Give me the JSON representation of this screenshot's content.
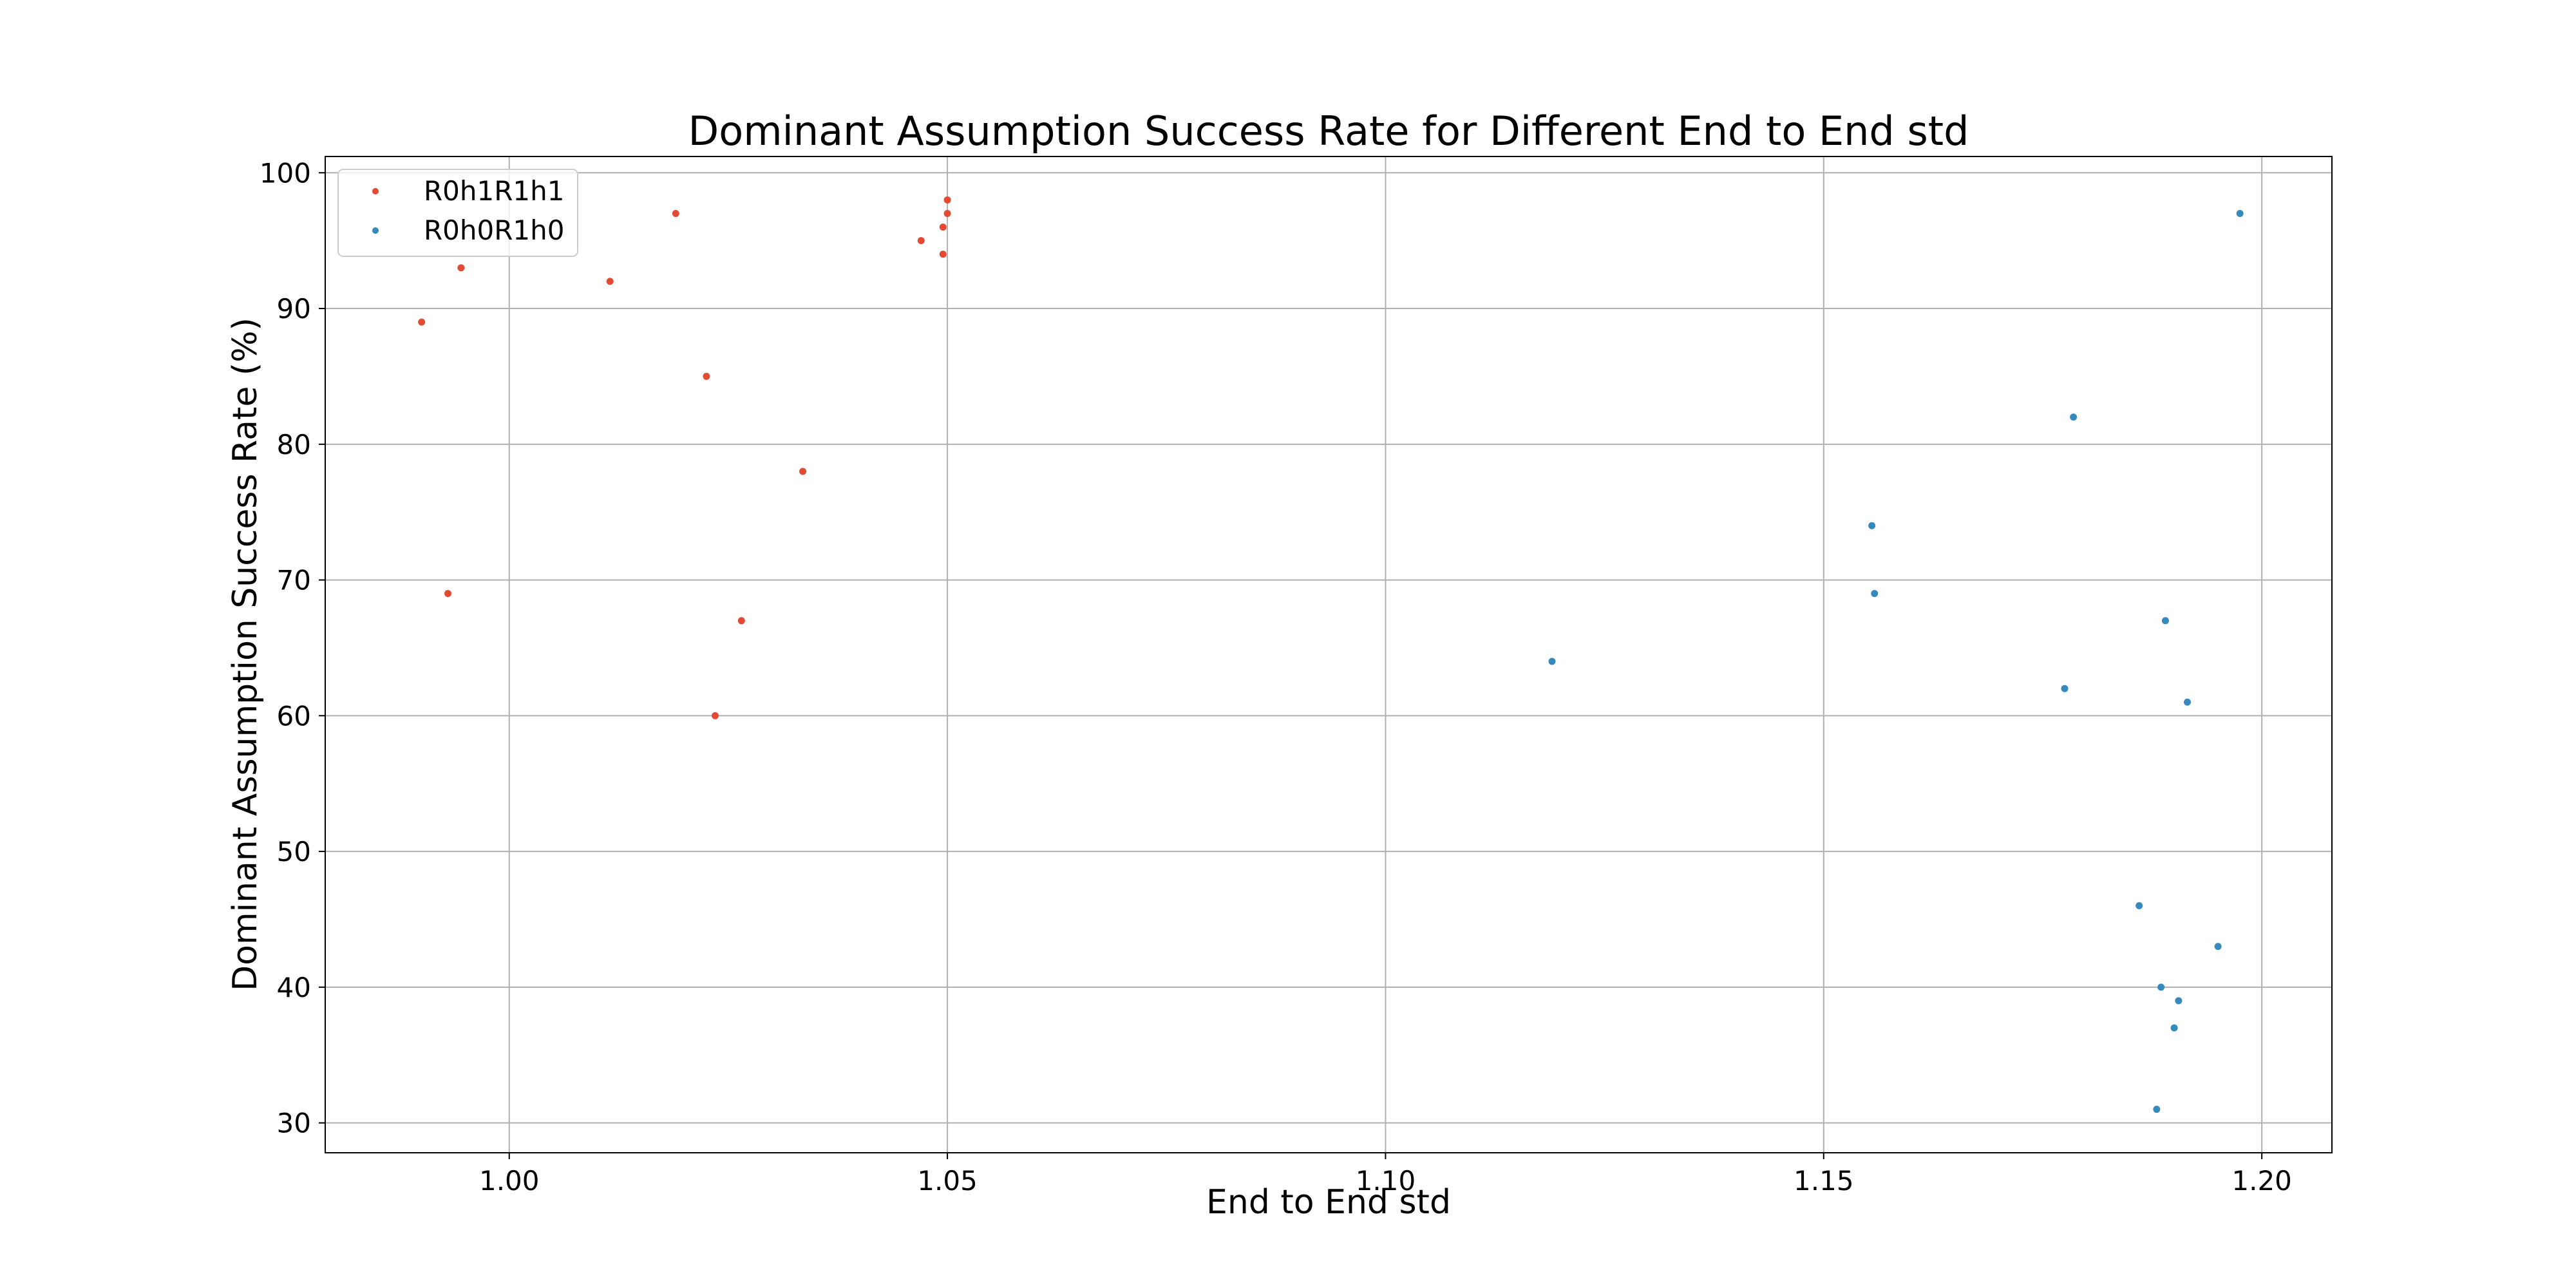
{
  "chart_data": {
    "type": "scatter",
    "title": "Dominant Assumption Success Rate for Different End to End std",
    "xlabel": "End to End std",
    "ylabel": "Dominant Assumption Success Rate (%)",
    "xlim": [
      0.979,
      1.208
    ],
    "ylim": [
      27.8,
      101.2
    ],
    "xticks": [
      1.0,
      1.05,
      1.1,
      1.15,
      1.2
    ],
    "xtick_labels": [
      "1.00",
      "1.05",
      "1.10",
      "1.15",
      "1.20"
    ],
    "yticks": [
      30,
      40,
      50,
      60,
      70,
      80,
      90,
      100
    ],
    "ytick_labels": [
      "30",
      "40",
      "50",
      "60",
      "70",
      "80",
      "90",
      "100"
    ],
    "grid": true,
    "legend_position": "top-left",
    "series": [
      {
        "name": "R0h1R1h1",
        "color": "#e24a33",
        "points": [
          [
            0.99,
            89
          ],
          [
            0.9945,
            93
          ],
          [
            0.993,
            69
          ],
          [
            1.0115,
            92
          ],
          [
            1.019,
            97
          ],
          [
            1.0225,
            85
          ],
          [
            1.0235,
            60
          ],
          [
            1.0265,
            67
          ],
          [
            1.0335,
            78
          ],
          [
            1.047,
            95
          ],
          [
            1.0495,
            96
          ],
          [
            1.0495,
            94
          ],
          [
            1.05,
            97
          ],
          [
            1.05,
            98
          ]
        ]
      },
      {
        "name": "R0h0R1h0",
        "color": "#348abd",
        "points": [
          [
            1.119,
            64
          ],
          [
            1.1555,
            74
          ],
          [
            1.1558,
            69
          ],
          [
            1.1775,
            62
          ],
          [
            1.1785,
            82
          ],
          [
            1.186,
            46
          ],
          [
            1.188,
            31
          ],
          [
            1.1885,
            40
          ],
          [
            1.189,
            67
          ],
          [
            1.19,
            37
          ],
          [
            1.1905,
            39
          ],
          [
            1.1915,
            61
          ],
          [
            1.195,
            43
          ],
          [
            1.1975,
            97
          ]
        ]
      }
    ]
  }
}
